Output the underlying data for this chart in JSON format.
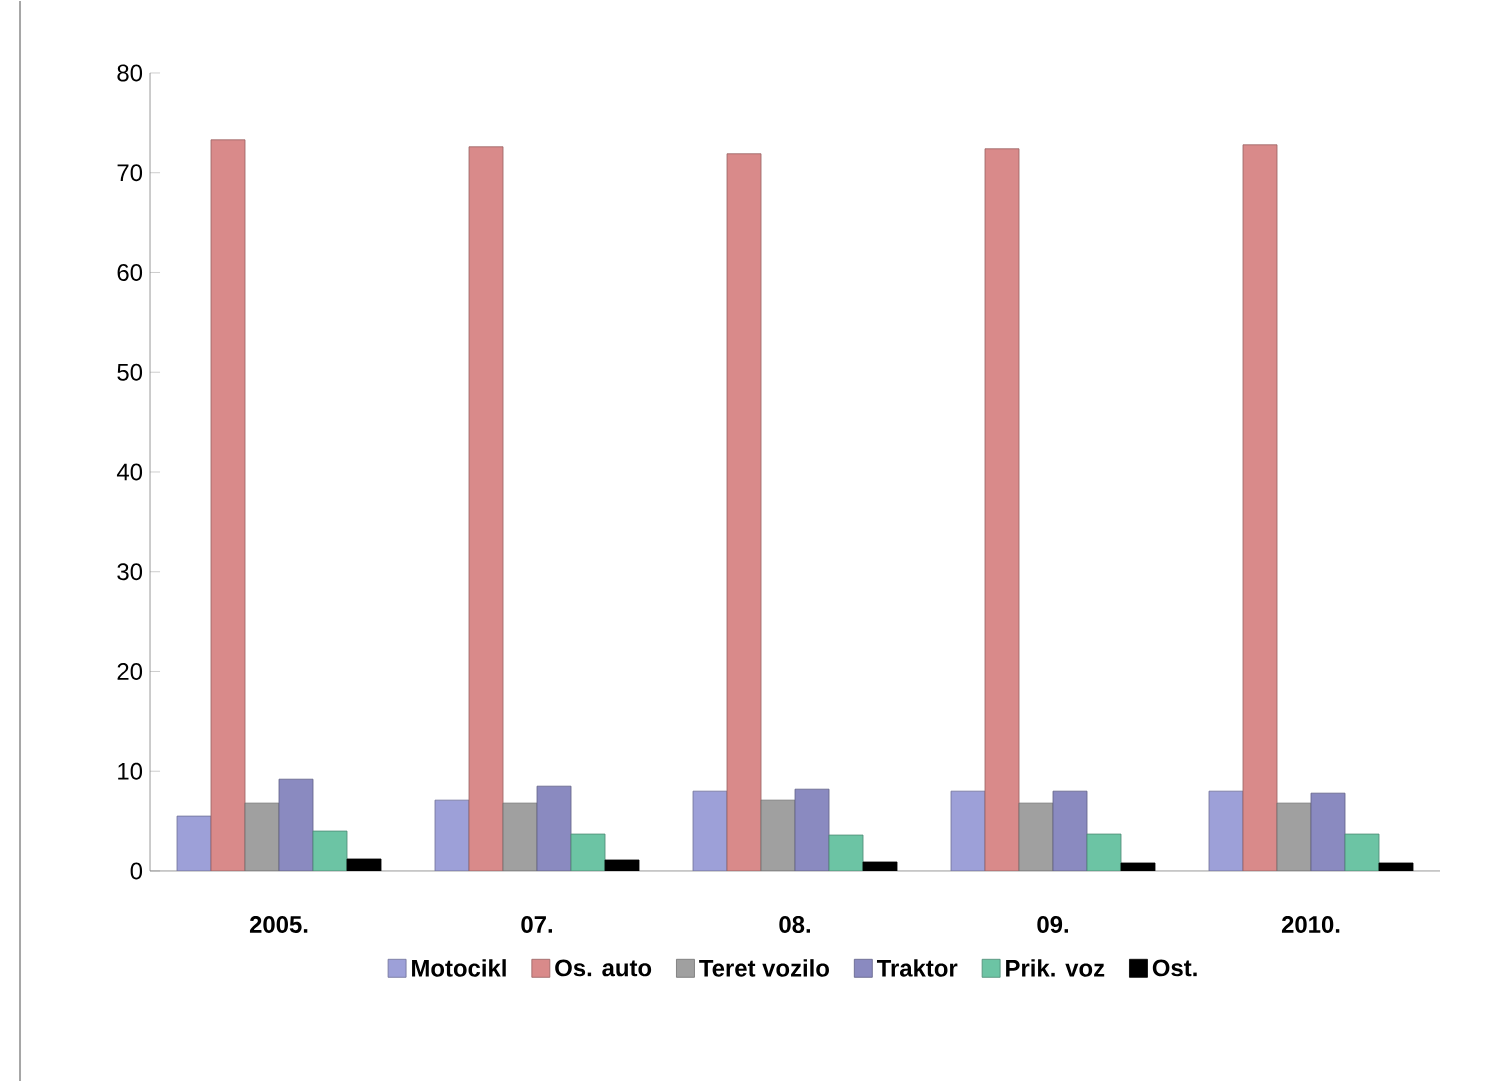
{
  "chart_data": {
    "type": "bar",
    "categories": [
      "2005.",
      "07.",
      "08.",
      "09.",
      "2010."
    ],
    "series": [
      {
        "name": "Motocikl",
        "color": "#9da0d8",
        "values": [
          5.5,
          7.1,
          8.0,
          8.0,
          8.0
        ]
      },
      {
        "name": "Os. auto",
        "color": "#d98a8a",
        "values": [
          73.3,
          72.6,
          71.9,
          72.4,
          72.8
        ]
      },
      {
        "name": "Teret vozilo",
        "color": "#a0a0a0",
        "values": [
          6.8,
          6.8,
          7.1,
          6.8,
          6.8
        ]
      },
      {
        "name": "Traktor",
        "color": "#8a8ac0",
        "values": [
          9.2,
          8.5,
          8.2,
          8.0,
          7.8
        ]
      },
      {
        "name": "Prik. voz",
        "color": "#6cc4a4",
        "values": [
          4.0,
          3.7,
          3.6,
          3.7,
          3.7
        ]
      },
      {
        "name": "Ost.",
        "color": "#000000",
        "values": [
          1.2,
          1.1,
          0.9,
          0.8,
          0.8
        ]
      }
    ],
    "ylim": [
      0,
      80
    ],
    "yticks": [
      0,
      10,
      20,
      30,
      40,
      50,
      60,
      70,
      80
    ],
    "grid": false,
    "legend": "bottom"
  }
}
